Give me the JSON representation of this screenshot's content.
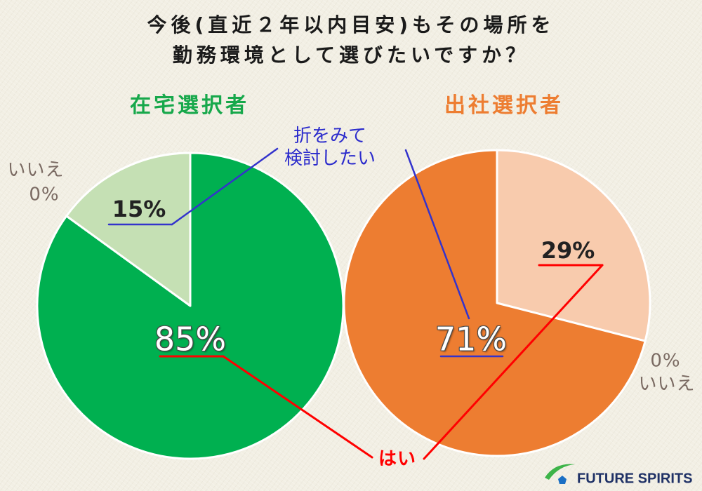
{
  "title": [
    "今後(直近２年以内目安)もその場所を",
    "勤務環境として選びたいですか？"
  ],
  "colors": {
    "background": "#f2efe4",
    "title_text": "#1a1a1a",
    "remote_heading": "#17a84b",
    "office_heading": "#ed7d31",
    "yes_line": "#ff0000",
    "yes_label": "#ff0000",
    "reconsider_line": "#3333cc",
    "reconsider_label": "#2b2bcc",
    "no_label": "#7b6b63",
    "slice_border": "#ffffff"
  },
  "chart_data": [
    {
      "type": "pie",
      "title": "在宅選択者",
      "categories": [
        "はい",
        "折をみて\n検討したい",
        "いいえ"
      ],
      "values": [
        85,
        15,
        0
      ],
      "labels": [
        "85%",
        "15%",
        "0%"
      ],
      "colors": [
        "#00b050",
        "#c5e0b4",
        "#7b6b63"
      ]
    },
    {
      "type": "pie",
      "title": "出社選択者",
      "categories": [
        "はい",
        "折をみて\n検討したい",
        "いいえ"
      ],
      "values": [
        29,
        71,
        0
      ],
      "labels": [
        "29%",
        "71%",
        "0%"
      ],
      "colors": [
        "#f8cbad",
        "#ed7d31",
        "#7b6b63"
      ]
    }
  ],
  "logo": {
    "text": "FUTURE SPIRITS",
    "icon": "swoosh-house-icon",
    "text_color": "#1f3166",
    "swoosh_color": "#3db449",
    "mark_color": "#1a6fc4"
  }
}
